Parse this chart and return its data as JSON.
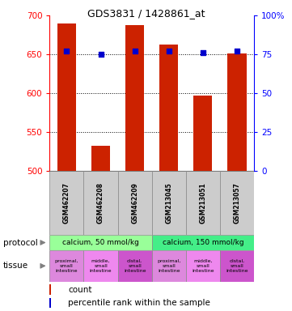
{
  "title": "GDS3831 / 1428861_at",
  "samples": [
    "GSM462207",
    "GSM462208",
    "GSM462209",
    "GSM213045",
    "GSM213051",
    "GSM213057"
  ],
  "counts": [
    690,
    533,
    688,
    663,
    597,
    651
  ],
  "percentiles": [
    77,
    75,
    77,
    77,
    76,
    77
  ],
  "ymin": 500,
  "ymax": 700,
  "yticks_left": [
    500,
    550,
    600,
    650,
    700
  ],
  "yticks_right": [
    0,
    25,
    50,
    75,
    100
  ],
  "bar_color": "#cc2200",
  "dot_color": "#0000cc",
  "protocols": [
    "calcium, 50 mmol/kg",
    "calcium, 150 mmol/kg"
  ],
  "protocol_color_1": "#99ff99",
  "protocol_color_2": "#44ee88",
  "tissue_labels": [
    "proximal,\nsmall\nintestine",
    "middle,\nsmall\nintestine",
    "distal,\nsmall\nintestine"
  ],
  "tissue_colors": [
    "#dd88dd",
    "#ee88ee",
    "#cc55cc"
  ],
  "sample_bg_color": "#cccccc",
  "legend_red_label": "count",
  "legend_blue_label": "percentile rank within the sample",
  "gridline_values": [
    550,
    600,
    650
  ]
}
